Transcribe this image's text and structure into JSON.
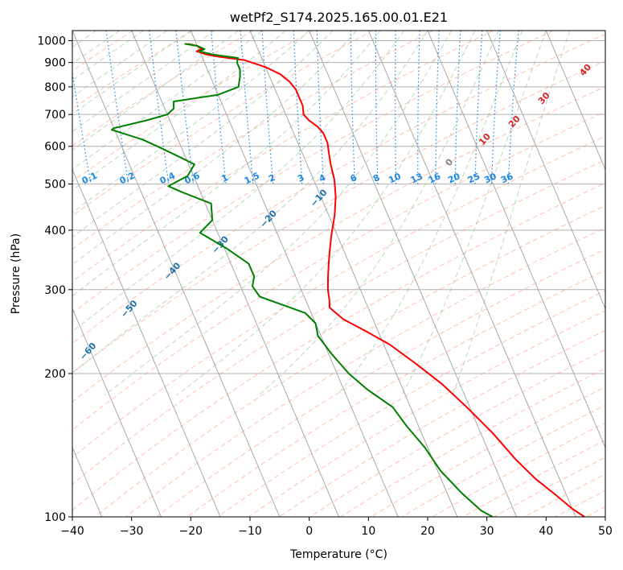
{
  "chart_data": {
    "type": "line",
    "subtype": "skew-t log-p",
    "title": "wetPf2_S174.2025.165.00.01.E21",
    "xlabel": "Temperature (°C)",
    "ylabel": "Pressure (hPa)",
    "xlim": [
      -40,
      50
    ],
    "ylim": [
      1050,
      100
    ],
    "y_scale": "log",
    "grid": true,
    "x_ticks": [
      "−40",
      "−30",
      "−20",
      "−10",
      "0",
      "10",
      "20",
      "30",
      "40",
      "50"
    ],
    "y_ticks": [
      "100",
      "200",
      "300",
      "400",
      "500",
      "600",
      "700",
      "800",
      "900",
      "1000"
    ],
    "series": [
      {
        "role": "temperature",
        "color": "#ff0000",
        "points": [
          [
            -21.5,
            985
          ],
          [
            -20,
            975
          ],
          [
            -19.5,
            960
          ],
          [
            -20.5,
            950
          ],
          [
            -19,
            935
          ],
          [
            -17,
            925
          ],
          [
            -13,
            910
          ],
          [
            -10,
            880
          ],
          [
            -8,
            850
          ],
          [
            -7,
            820
          ],
          [
            -6.5,
            790
          ],
          [
            -6.5,
            730
          ],
          [
            -7,
            700
          ],
          [
            -6.5,
            680
          ],
          [
            -5.5,
            660
          ],
          [
            -5,
            640
          ],
          [
            -5,
            610
          ],
          [
            -5.5,
            580
          ],
          [
            -6,
            550
          ],
          [
            -6.5,
            510
          ],
          [
            -7.5,
            470
          ],
          [
            -9,
            430
          ],
          [
            -11,
            390
          ],
          [
            -12.5,
            360
          ],
          [
            -13.5,
            340
          ],
          [
            -14.5,
            320
          ],
          [
            -15.5,
            300
          ],
          [
            -16,
            285
          ],
          [
            -16.5,
            275
          ],
          [
            -15,
            260
          ],
          [
            -12,
            245
          ],
          [
            -9,
            230
          ],
          [
            -6,
            210
          ],
          [
            -3,
            190
          ],
          [
            -0.5,
            170
          ],
          [
            2,
            150
          ],
          [
            4,
            132
          ],
          [
            6,
            120
          ],
          [
            8,
            112
          ],
          [
            10,
            104
          ],
          [
            11.5,
            100
          ]
        ]
      },
      {
        "role": "dewpoint",
        "color": "#008000",
        "points": [
          [
            -22,
            985
          ],
          [
            -20,
            975
          ],
          [
            -19,
            960
          ],
          [
            -20,
            950
          ],
          [
            -18,
            935
          ],
          [
            -14,
            920
          ],
          [
            -14.5,
            900
          ],
          [
            -14.5,
            870
          ],
          [
            -15,
            840
          ],
          [
            -16,
            800
          ],
          [
            -20,
            770
          ],
          [
            -28,
            745
          ],
          [
            -28.5,
            720
          ],
          [
            -30,
            700
          ],
          [
            -34,
            680
          ],
          [
            -40,
            655
          ],
          [
            -40.5,
            650
          ],
          [
            -36,
            620
          ],
          [
            -34,
            600
          ],
          [
            -31.5,
            575
          ],
          [
            -29,
            550
          ],
          [
            -31,
            520
          ],
          [
            -35,
            495
          ],
          [
            -33,
            480
          ],
          [
            -29,
            455
          ],
          [
            -30,
            420
          ],
          [
            -33,
            395
          ],
          [
            -29.5,
            365
          ],
          [
            -27,
            340
          ],
          [
            -27,
            320
          ],
          [
            -28,
            305
          ],
          [
            -27.5,
            290
          ],
          [
            -24,
            278
          ],
          [
            -21,
            268
          ],
          [
            -20,
            255
          ],
          [
            -20.5,
            240
          ],
          [
            -19.5,
            220
          ],
          [
            -18,
            200
          ],
          [
            -16,
            185
          ],
          [
            -13,
            170
          ],
          [
            -12,
            155
          ],
          [
            -10.5,
            140
          ],
          [
            -9.5,
            125
          ],
          [
            -7.5,
            112
          ],
          [
            -5.5,
            103
          ],
          [
            -4,
            100
          ]
        ]
      }
    ],
    "dry_adiabats_c": [
      -100,
      -90,
      -80,
      -70,
      -60,
      -50,
      -40,
      -30,
      -20,
      -10
    ],
    "moist_adiabats_c": [
      0,
      10,
      20,
      30,
      40
    ],
    "mixing_ratio_gkg": [
      "0.1",
      "0.2",
      "0.4",
      "0.6",
      "1",
      "1.5",
      "2",
      "3",
      "4",
      "6",
      "8",
      "10",
      "13",
      "16",
      "20",
      "25",
      "30",
      "36"
    ],
    "mixing_ratio_label_pressure": 500,
    "colors": {
      "dry_adiabat": "#ff8c69",
      "moist_adiabat": "#8fbc8f",
      "mixing_ratio": "#1e88e5",
      "isotherm": "#808080",
      "dry_label": "#1f6fa8",
      "moist_label": "#d62728"
    }
  }
}
